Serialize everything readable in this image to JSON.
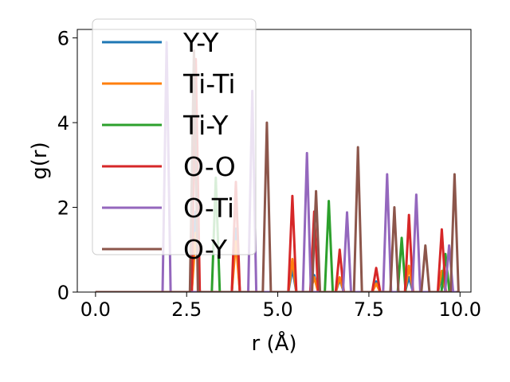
{
  "chart_data": {
    "type": "line",
    "xlabel": "r (Å)",
    "ylabel": "g(r)",
    "xlim": [
      -0.5,
      10.3
    ],
    "ylim": [
      0,
      6.2
    ],
    "x_ticks": [
      {
        "value": 0.0,
        "label": "0.0"
      },
      {
        "value": 2.5,
        "label": "2.5"
      },
      {
        "value": 5.0,
        "label": "5.0"
      },
      {
        "value": 7.5,
        "label": "7.5"
      },
      {
        "value": 10.0,
        "label": "10.0"
      }
    ],
    "y_ticks": [
      {
        "value": 0,
        "label": "0"
      },
      {
        "value": 2,
        "label": "2"
      },
      {
        "value": 4,
        "label": "4"
      },
      {
        "value": 6,
        "label": "6"
      }
    ],
    "x_range": [
      0.0,
      9.9
    ],
    "legend_position": "upper-left",
    "grid": false,
    "series": [
      {
        "name": "Y-Y",
        "color": "#1f77b4",
        "peaks": [
          [
            2.75,
            1.9
          ],
          [
            3.85,
            1.5
          ],
          [
            5.4,
            0.55
          ],
          [
            6.0,
            0.4
          ],
          [
            6.7,
            0.3
          ],
          [
            7.7,
            0.25
          ],
          [
            8.6,
            0.35
          ],
          [
            9.5,
            0.35
          ]
        ]
      },
      {
        "name": "Ti-Ti",
        "color": "#ff7f0e",
        "peaks": [
          [
            2.75,
            1.4
          ],
          [
            3.85,
            1.2
          ],
          [
            5.4,
            0.78
          ],
          [
            6.0,
            0.35
          ],
          [
            6.7,
            0.35
          ],
          [
            7.7,
            0.2
          ],
          [
            8.6,
            0.62
          ],
          [
            9.5,
            0.5
          ]
        ]
      },
      {
        "name": "Ti-Y",
        "color": "#2ca02c",
        "peaks": [
          [
            3.3,
            2.7
          ],
          [
            6.4,
            2.15
          ],
          [
            8.4,
            1.28
          ],
          [
            9.6,
            0.9
          ]
        ]
      },
      {
        "name": "O-O",
        "color": "#d62728",
        "peaks": [
          [
            2.75,
            5.5
          ],
          [
            3.85,
            2.6
          ],
          [
            5.4,
            2.27
          ],
          [
            6.0,
            1.9
          ],
          [
            6.7,
            1.0
          ],
          [
            7.7,
            0.57
          ],
          [
            8.6,
            1.82
          ],
          [
            9.5,
            1.48
          ]
        ]
      },
      {
        "name": "O-Ti",
        "color": "#9467bd",
        "peaks": [
          [
            1.95,
            5.9
          ],
          [
            4.3,
            4.75
          ],
          [
            5.8,
            3.28
          ],
          [
            6.9,
            1.88
          ],
          [
            8.0,
            2.78
          ],
          [
            8.8,
            2.3
          ],
          [
            9.7,
            1.1
          ]
        ]
      },
      {
        "name": "O-Y",
        "color": "#8c564b",
        "peaks": [
          [
            2.7,
            5.7
          ],
          [
            4.7,
            4.0
          ],
          [
            6.05,
            2.38
          ],
          [
            7.2,
            3.42
          ],
          [
            8.2,
            2.0
          ],
          [
            9.05,
            1.1
          ],
          [
            9.85,
            2.78
          ]
        ]
      }
    ]
  }
}
